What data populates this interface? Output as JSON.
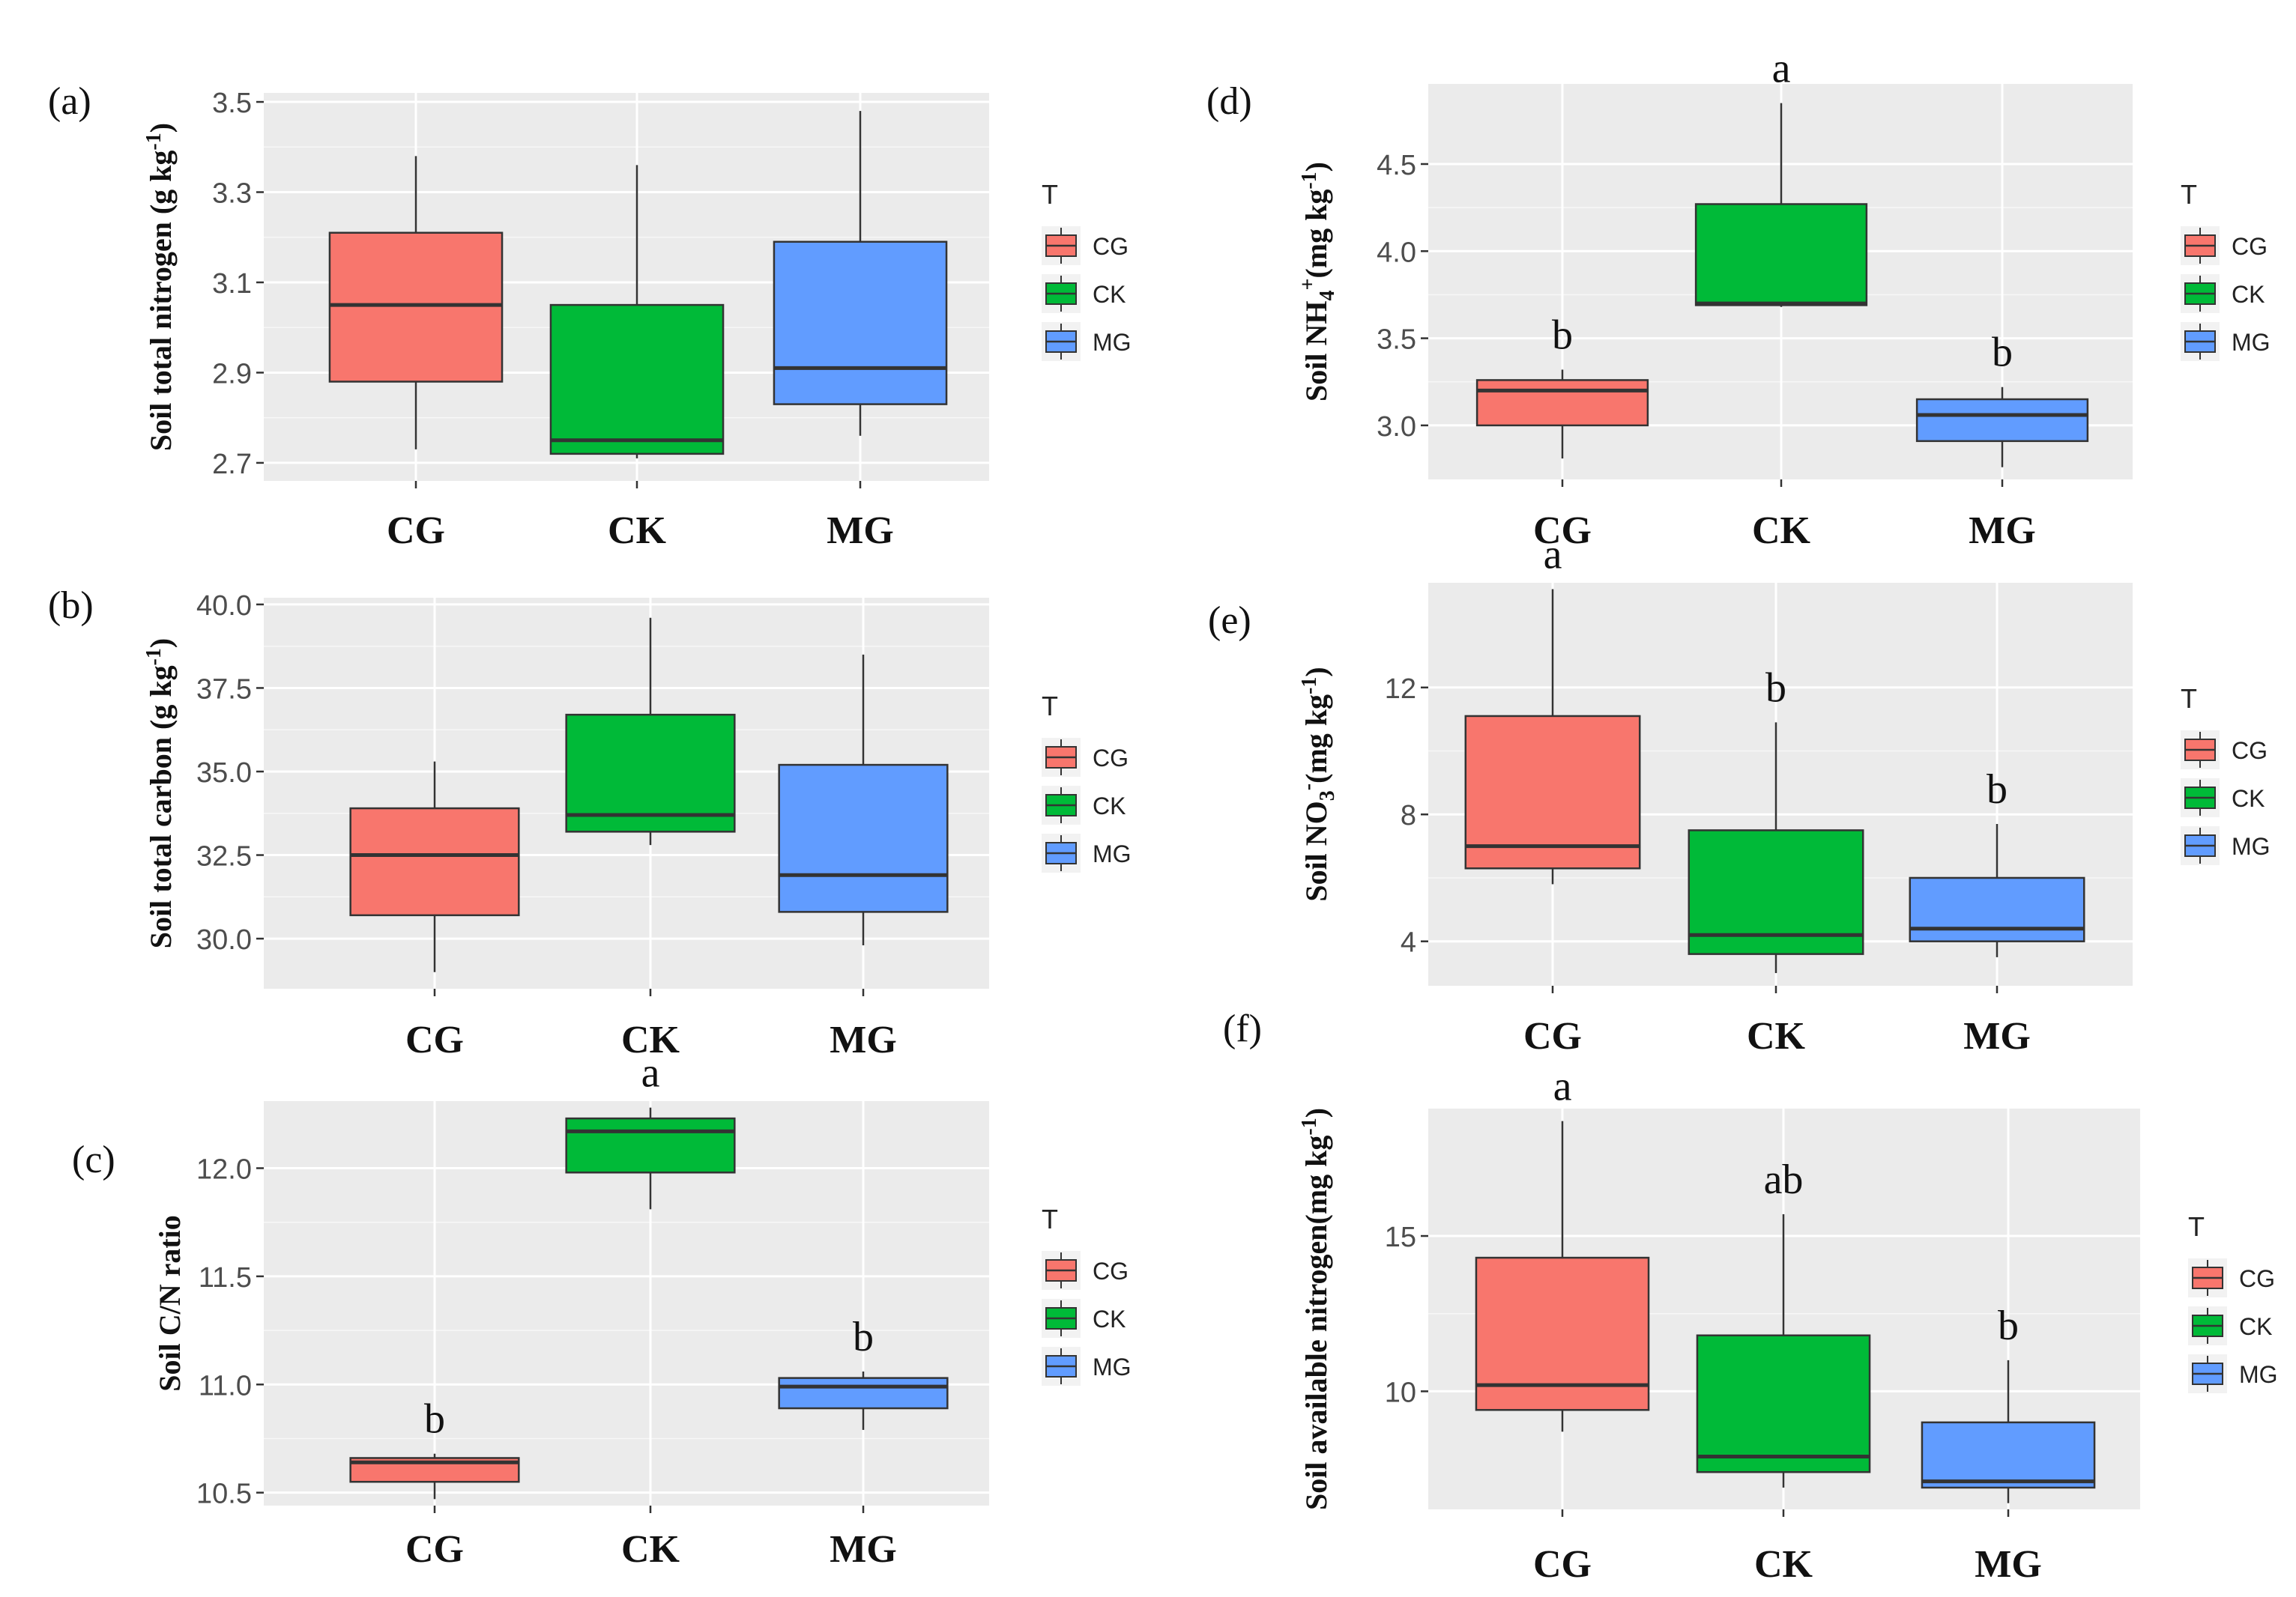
{
  "legend": {
    "title": "T",
    "entries": [
      "CG",
      "CK",
      "MG"
    ]
  },
  "colors": {
    "CG": "#F8766D",
    "CK": "#00BA38",
    "MG": "#619CFF",
    "panel_bg": "#EBEBEB",
    "grid": "#FFFFFF",
    "stroke": "#333333"
  },
  "chart_data": [
    {
      "id": "a",
      "panel_label": "(a)",
      "type": "box",
      "ylabel_main": "Soil total nitrogen (g kg",
      "ylabel_sup": "-1",
      "ylabel_end": ")",
      "categories": [
        "CG",
        "CK",
        "MG"
      ],
      "ylim": [
        2.66,
        3.52
      ],
      "ticks": [
        2.7,
        2.9,
        3.1,
        3.3,
        3.5
      ],
      "tick_labels": [
        "2.7",
        "2.9",
        "3.1",
        "3.3",
        "3.5"
      ],
      "boxes": [
        {
          "min": 2.73,
          "q1": 2.88,
          "median": 3.05,
          "q3": 3.21,
          "max": 3.38
        },
        {
          "min": 2.71,
          "q1": 2.72,
          "median": 2.75,
          "q3": 3.05,
          "max": 3.36
        },
        {
          "min": 2.76,
          "q1": 2.83,
          "median": 2.91,
          "q3": 3.19,
          "max": 3.48
        }
      ],
      "letters": [
        "",
        "",
        ""
      ]
    },
    {
      "id": "b",
      "panel_label": "(b)",
      "type": "box",
      "ylabel_main": "Soil total carbon (g kg",
      "ylabel_sup": "-1",
      "ylabel_end": ")",
      "categories": [
        "CG",
        "CK",
        "MG"
      ],
      "ylim": [
        28.5,
        40.2
      ],
      "ticks": [
        30.0,
        32.5,
        35.0,
        37.5,
        40.0
      ],
      "tick_labels": [
        "30.0",
        "32.5",
        "35.0",
        "37.5",
        "40.0"
      ],
      "boxes": [
        {
          "min": 29.0,
          "q1": 30.7,
          "median": 32.5,
          "q3": 33.9,
          "max": 35.3
        },
        {
          "min": 32.8,
          "q1": 33.2,
          "median": 33.7,
          "q3": 36.7,
          "max": 39.6
        },
        {
          "min": 29.8,
          "q1": 30.8,
          "median": 31.9,
          "q3": 35.2,
          "max": 38.5
        }
      ],
      "letters": [
        "",
        "",
        ""
      ]
    },
    {
      "id": "c",
      "panel_label": "(c)",
      "type": "box",
      "ylabel_main": "Soil C/N ratio",
      "ylabel_sup": "",
      "ylabel_end": "",
      "categories": [
        "CG",
        "CK",
        "MG"
      ],
      "ylim": [
        10.44,
        12.31
      ],
      "ticks": [
        10.5,
        11.0,
        11.5,
        12.0
      ],
      "tick_labels": [
        "10.5",
        "11.0",
        "11.5",
        "12.0"
      ],
      "boxes": [
        {
          "min": 10.47,
          "q1": 10.55,
          "median": 10.64,
          "q3": 10.66,
          "max": 10.68
        },
        {
          "min": 11.81,
          "q1": 11.98,
          "median": 12.17,
          "q3": 12.23,
          "max": 12.28
        },
        {
          "min": 10.79,
          "q1": 10.89,
          "median": 10.99,
          "q3": 11.03,
          "max": 11.06
        }
      ],
      "letters": [
        "b",
        "a",
        "b"
      ]
    },
    {
      "id": "d",
      "panel_label": "(d)",
      "type": "box",
      "ylabel_main": "Soil NH",
      "ylabel_sub": "4",
      "ylabel_sup": "+",
      "ylabel_end": "(mg kg",
      "ylabel_sup2": "-1",
      "ylabel_end2": ")",
      "categories": [
        "CG",
        "CK",
        "MG"
      ],
      "ylim": [
        2.69,
        4.96
      ],
      "ticks": [
        3.0,
        3.5,
        4.0,
        4.5
      ],
      "tick_labels": [
        "3.0",
        "3.5",
        "4.0",
        "4.5"
      ],
      "boxes": [
        {
          "min": 2.81,
          "q1": 3.0,
          "median": 3.2,
          "q3": 3.26,
          "max": 3.32
        },
        {
          "min": 3.68,
          "q1": 3.69,
          "median": 3.7,
          "q3": 4.27,
          "max": 4.85
        },
        {
          "min": 2.76,
          "q1": 2.91,
          "median": 3.06,
          "q3": 3.15,
          "max": 3.22
        }
      ],
      "letters": [
        "b",
        "a",
        "b"
      ]
    },
    {
      "id": "e",
      "panel_label": "(e)",
      "type": "box",
      "ylabel_main": "Soil NO",
      "ylabel_sub": "3",
      "ylabel_sup": "-",
      "ylabel_end": "(mg kg",
      "ylabel_sup2": "-1",
      "ylabel_end2": ")",
      "categories": [
        "CG",
        "CK",
        "MG"
      ],
      "ylim": [
        2.6,
        15.3
      ],
      "ticks": [
        4,
        8,
        12
      ],
      "tick_labels": [
        "4",
        "8",
        "12"
      ],
      "boxes": [
        {
          "min": 5.8,
          "q1": 6.3,
          "median": 7.0,
          "q3": 11.1,
          "max": 15.1
        },
        {
          "min": 3.0,
          "q1": 3.6,
          "median": 4.2,
          "q3": 7.5,
          "max": 10.9
        },
        {
          "min": 3.5,
          "q1": 4.0,
          "median": 4.4,
          "q3": 6.0,
          "max": 7.7
        }
      ],
      "letters": [
        "a",
        "b",
        "b"
      ]
    },
    {
      "id": "f",
      "panel_label": "(f)",
      "type": "box",
      "ylabel_main": "Soil available nitrogen(mg kg",
      "ylabel_sup": "-1",
      "ylabel_end": ")",
      "categories": [
        "CG",
        "CK",
        "MG"
      ],
      "ylim": [
        6.2,
        19.1
      ],
      "ticks": [
        10,
        15
      ],
      "tick_labels": [
        "10",
        "15"
      ],
      "boxes": [
        {
          "min": 8.7,
          "q1": 9.4,
          "median": 10.2,
          "q3": 14.3,
          "max": 18.7
        },
        {
          "min": 6.9,
          "q1": 7.4,
          "median": 7.9,
          "q3": 11.8,
          "max": 15.7
        },
        {
          "min": 6.4,
          "q1": 6.9,
          "median": 7.1,
          "q3": 9.0,
          "max": 11.0
        }
      ],
      "letters": [
        "a",
        "ab",
        "b"
      ]
    }
  ]
}
